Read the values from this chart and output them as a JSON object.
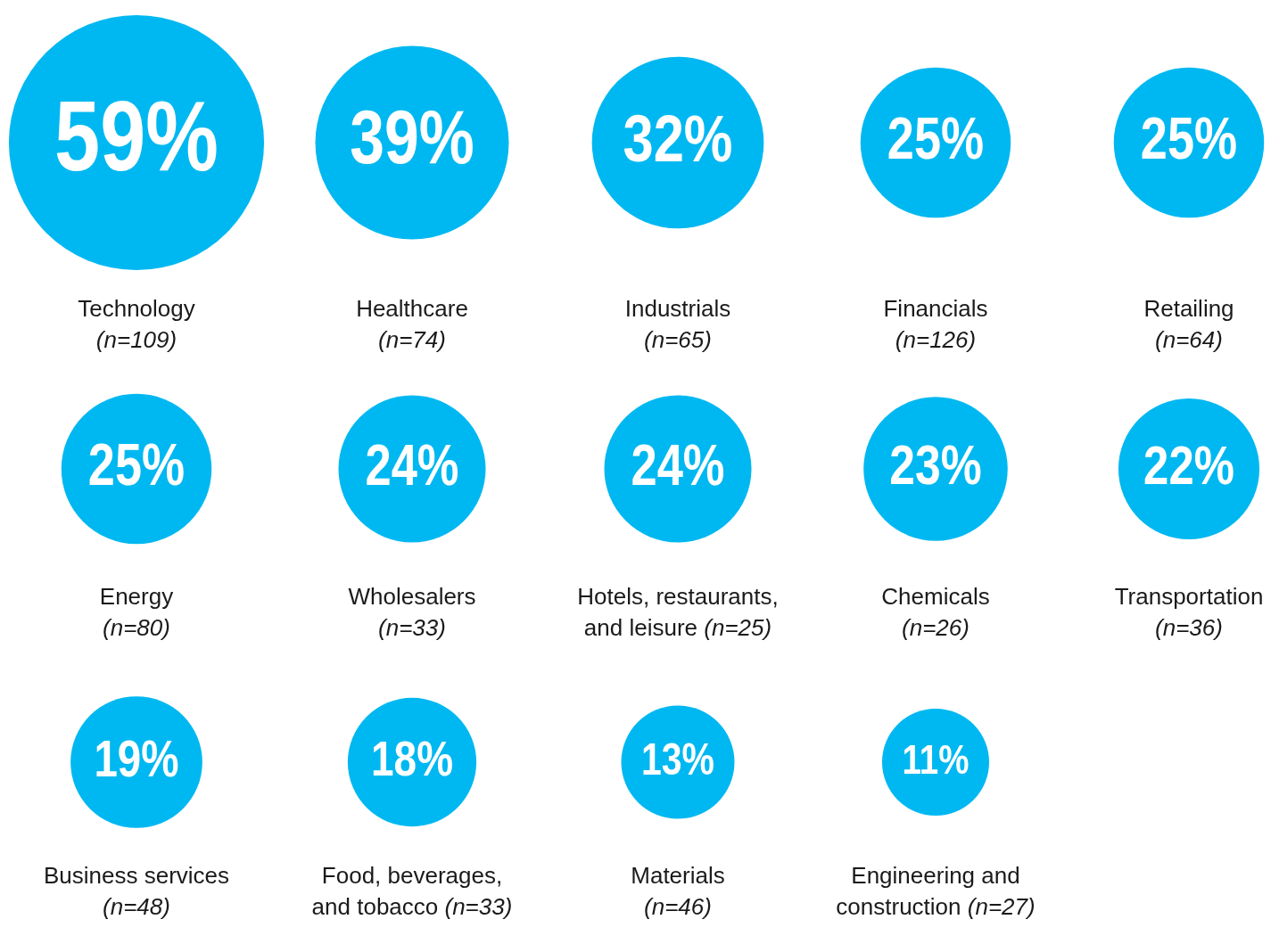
{
  "chart_data": {
    "type": "other",
    "categories": [
      "Technology (n=109)",
      "Healthcare (n=74)",
      "Industrials (n=65)",
      "Financials (n=126)",
      "Retailing (n=64)",
      "Energy (n=80)",
      "Wholesalers (n=33)",
      "Hotels, restaurants, and leisure (n=25)",
      "Chemicals (n=26)",
      "Transportation (n=36)",
      "Business services (n=48)",
      "Food, beverages, and tobacco (n=33)",
      "Materials (n=46)",
      "Engineering and construction (n=27)"
    ],
    "values": [
      59,
      39,
      32,
      25,
      25,
      25,
      24,
      24,
      23,
      22,
      19,
      18,
      13,
      11
    ],
    "value_labels": [
      "59%",
      "39%",
      "32%",
      "25%",
      "25%",
      "25%",
      "24%",
      "24%",
      "23%",
      "22%",
      "19%",
      "18%",
      "13%",
      "11%"
    ],
    "color": "#00b8f1"
  }
}
